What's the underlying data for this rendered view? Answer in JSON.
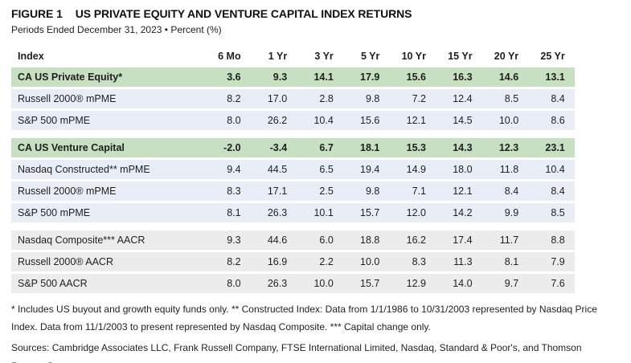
{
  "header": {
    "figure_label": "FIGURE 1",
    "title": "US PRIVATE EQUITY AND VENTURE CAPITAL INDEX RETURNS",
    "subtitle": "Periods Ended December 31, 2023 • Percent (%)"
  },
  "colors": {
    "highlight_green": "#c7e0c2",
    "band_blue": "#e9edf5",
    "band_gray": "#ececec",
    "text": "#1f1f1f"
  },
  "table": {
    "columns": [
      "Index",
      "6 Mo",
      "1 Yr",
      "3 Yr",
      "5 Yr",
      "10 Yr",
      "15 Yr",
      "20 Yr",
      "25 Yr"
    ],
    "groups": [
      {
        "rows": [
          {
            "label": "CA US Private Equity*",
            "style": "green",
            "values": [
              "3.6",
              "9.3",
              "14.1",
              "17.9",
              "15.6",
              "16.3",
              "14.6",
              "13.1"
            ]
          },
          {
            "label": "Russell 2000® mPME",
            "style": "blue",
            "values": [
              "8.2",
              "17.0",
              "2.8",
              "9.8",
              "7.2",
              "12.4",
              "8.5",
              "8.4"
            ]
          },
          {
            "label": "S&P 500 mPME",
            "style": "blue",
            "values": [
              "8.0",
              "26.2",
              "10.4",
              "15.6",
              "12.1",
              "14.5",
              "10.0",
              "8.6"
            ]
          }
        ]
      },
      {
        "rows": [
          {
            "label": "CA US Venture Capital",
            "style": "green",
            "values": [
              "-2.0",
              "-3.4",
              "6.7",
              "18.1",
              "15.3",
              "14.3",
              "12.3",
              "23.1"
            ]
          },
          {
            "label": "Nasdaq Constructed** mPME",
            "style": "blue",
            "values": [
              "9.4",
              "44.5",
              "6.5",
              "19.4",
              "14.9",
              "18.0",
              "11.8",
              "10.4"
            ]
          },
          {
            "label": "Russell 2000® mPME",
            "style": "blue",
            "values": [
              "8.3",
              "17.1",
              "2.5",
              "9.8",
              "7.1",
              "12.1",
              "8.4",
              "8.4"
            ]
          },
          {
            "label": "S&P 500 mPME",
            "style": "blue",
            "values": [
              "8.1",
              "26.3",
              "10.1",
              "15.7",
              "12.0",
              "14.2",
              "9.9",
              "8.5"
            ]
          }
        ]
      },
      {
        "rows": [
          {
            "label": "Nasdaq Composite*** AACR",
            "style": "gray",
            "values": [
              "9.3",
              "44.6",
              "6.0",
              "18.8",
              "16.2",
              "17.4",
              "11.7",
              "8.8"
            ]
          },
          {
            "label": "Russell 2000® AACR",
            "style": "gray",
            "values": [
              "8.2",
              "16.9",
              "2.2",
              "10.0",
              "8.3",
              "11.3",
              "8.1",
              "7.9"
            ]
          },
          {
            "label": "S&P 500 AACR",
            "style": "gray",
            "values": [
              "8.0",
              "26.3",
              "10.0",
              "15.7",
              "12.9",
              "14.0",
              "9.7",
              "7.6"
            ]
          }
        ]
      }
    ]
  },
  "footnotes": {
    "notes": "* Includes US buyout and growth equity funds only. ** Constructed Index: Data from 1/1/1986 to 10/31/2003 represented by Nasdaq Price Index. Data from 11/1/2003 to present represented by Nasdaq Composite. *** Capital change only.",
    "sources": "Sources: Cambridge Associates LLC, Frank Russell Company, FTSE International Limited, Nasdaq, Standard & Poor's, and Thomson Reuters Datastream."
  }
}
